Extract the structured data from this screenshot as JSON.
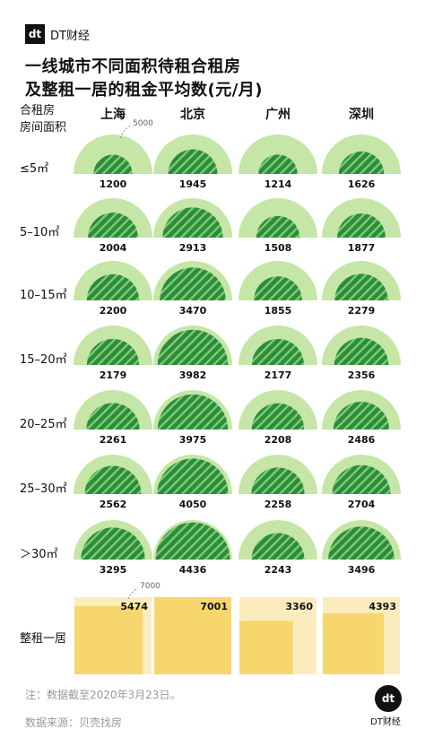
{
  "brand": {
    "logo_mark": "dt",
    "name": "DT财经"
  },
  "title_lines": [
    "一线城市不同面积待租合租房",
    "及整租一居的租金平均数(元/月)"
  ],
  "row_header": [
    "合租房",
    "房间面积"
  ],
  "colors": {
    "outer_halo": "#c5e6a6",
    "inner_fill": "#2e8b3e",
    "hatch": "#7ccf72",
    "square_bg": "#fbecbd",
    "square_fill": "#f7d66e",
    "note_text": "#999999"
  },
  "chart_data": {
    "type": "semicircle-area",
    "cities": [
      "上海",
      "北京",
      "广州",
      "深圳"
    ],
    "reference_outer": {
      "shared_rent": "5000",
      "whole_rent": "7000"
    },
    "shared_rent": {
      "areas": [
        "≤5㎡",
        "5–10㎡",
        "10–15㎡",
        "15–20㎡",
        "20–25㎡",
        "25–30㎡",
        "＞30㎡"
      ],
      "values": [
        [
          1200,
          1945,
          1214,
          1626
        ],
        [
          2004,
          2913,
          1508,
          1877
        ],
        [
          2200,
          3470,
          1855,
          2279
        ],
        [
          2179,
          3982,
          2177,
          2356
        ],
        [
          2261,
          3975,
          2208,
          2486
        ],
        [
          2562,
          4050,
          2258,
          2704
        ],
        [
          3295,
          4436,
          2243,
          3496
        ]
      ]
    },
    "whole_rent_one_bedroom": {
      "label": "整租一居",
      "values": [
        5474,
        7001,
        3360,
        4393
      ]
    }
  },
  "notes": {
    "note": "注：数据截至2020年3月23日。",
    "source": "数据来源：贝壳找房"
  }
}
